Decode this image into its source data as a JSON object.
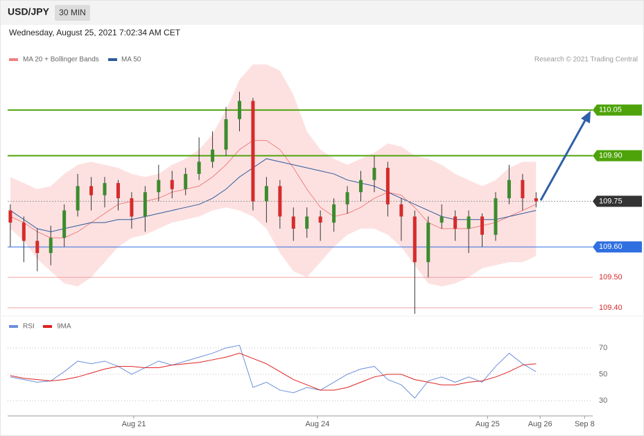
{
  "header": {
    "symbol": "USD/JPY",
    "interval": "30 MIN",
    "date": "Wednesday, August 25, 2021 7:02:34 AM CET",
    "credit": "Research © 2021 Trading Central"
  },
  "chart_data": [
    {
      "type": "candlestick",
      "xlim": [
        -0.2,
        43.2
      ],
      "xticks": [
        {
          "value": 9.16,
          "label": "Aug 21"
        },
        {
          "value": 22.78,
          "label": "Aug 24"
        },
        {
          "value": 35.4,
          "label": "Aug 25"
        },
        {
          "value": 39.3,
          "label": "Aug 26"
        },
        {
          "value": 42.6,
          "label": "Sep 8"
        }
      ],
      "ylim": [
        109.375,
        110.275
      ],
      "up_color": "#3d8b2e",
      "down_color": "#d62b2b",
      "open": [
        109.72,
        109.68,
        109.62,
        109.58,
        109.63,
        109.72,
        109.8,
        109.77,
        109.81,
        109.76,
        109.7,
        109.78,
        109.82,
        109.79,
        109.84,
        109.88,
        109.92,
        110.02,
        110.08,
        109.75,
        109.8,
        109.7,
        109.66,
        109.7,
        109.68,
        109.74,
        109.78,
        109.82,
        109.86,
        109.74,
        109.7,
        109.55,
        109.68,
        109.7,
        109.66,
        109.7,
        109.64,
        109.76,
        109.82,
        109.76
      ],
      "high": [
        109.74,
        109.7,
        109.66,
        109.67,
        109.74,
        109.84,
        109.83,
        109.83,
        109.82,
        109.78,
        109.8,
        109.87,
        109.85,
        109.86,
        109.96,
        109.98,
        110.06,
        110.11,
        110.09,
        109.83,
        109.82,
        109.73,
        109.73,
        109.72,
        109.76,
        109.8,
        109.85,
        109.9,
        109.88,
        109.76,
        109.72,
        109.7,
        109.74,
        109.72,
        109.72,
        109.71,
        109.78,
        109.87,
        109.84,
        109.78
      ],
      "low": [
        109.6,
        109.55,
        109.52,
        109.54,
        109.6,
        109.7,
        109.72,
        109.73,
        109.72,
        109.66,
        109.65,
        109.75,
        109.76,
        109.77,
        109.82,
        109.86,
        109.9,
        109.98,
        109.72,
        109.68,
        109.66,
        109.62,
        109.63,
        109.62,
        109.65,
        109.71,
        109.75,
        109.78,
        109.7,
        109.62,
        109.38,
        109.5,
        109.66,
        109.62,
        109.58,
        109.6,
        109.62,
        109.74,
        109.72,
        109.73
      ],
      "close": [
        109.68,
        109.62,
        109.58,
        109.63,
        109.72,
        109.8,
        109.77,
        109.81,
        109.76,
        109.7,
        109.78,
        109.82,
        109.79,
        109.84,
        109.88,
        109.92,
        110.02,
        110.08,
        109.75,
        109.8,
        109.7,
        109.66,
        109.7,
        109.68,
        109.74,
        109.78,
        109.82,
        109.86,
        109.74,
        109.7,
        109.55,
        109.68,
        109.7,
        109.66,
        109.7,
        109.64,
        109.76,
        109.82,
        109.76,
        109.75
      ],
      "bands": {
        "name": "MA 20 + Bollinger Bands",
        "color": "#f08080",
        "fill": "#fddada",
        "ma": [
          109.7,
          109.68,
          109.65,
          109.63,
          109.63,
          109.65,
          109.68,
          109.71,
          109.74,
          109.75,
          109.75,
          109.76,
          109.78,
          109.79,
          109.8,
          109.83,
          109.87,
          109.92,
          109.95,
          109.95,
          109.92,
          109.86,
          109.79,
          109.73,
          109.7,
          109.71,
          109.73,
          109.76,
          109.78,
          109.77,
          109.73,
          109.68,
          109.66,
          109.66,
          109.66,
          109.67,
          109.68,
          109.7,
          109.72,
          109.74
        ],
        "upper": [
          109.83,
          109.81,
          109.79,
          109.8,
          109.84,
          109.87,
          109.88,
          109.87,
          109.86,
          109.84,
          109.83,
          109.84,
          109.87,
          109.89,
          109.92,
          109.97,
          110.05,
          110.15,
          110.2,
          110.2,
          110.18,
          110.1,
          109.98,
          109.92,
          109.89,
          109.87,
          109.89,
          109.91,
          109.94,
          109.93,
          109.9,
          109.89,
          109.87,
          109.84,
          109.82,
          109.8,
          109.82,
          109.86,
          109.88,
          109.88
        ],
        "lower": [
          109.66,
          109.62,
          109.56,
          109.52,
          109.48,
          109.47,
          109.5,
          109.55,
          109.6,
          109.63,
          109.64,
          109.66,
          109.68,
          109.69,
          109.7,
          109.72,
          109.73,
          109.72,
          109.7,
          109.66,
          109.58,
          109.52,
          109.5,
          109.55,
          109.6,
          109.64,
          109.66,
          109.66,
          109.64,
          109.6,
          109.54,
          109.48,
          109.47,
          109.48,
          109.5,
          109.53,
          109.54,
          109.55,
          109.55,
          109.57
        ]
      },
      "ma50": {
        "name": "MA 50",
        "color": "#2d5a9a",
        "values": [
          109.72,
          109.69,
          109.66,
          109.65,
          109.66,
          109.67,
          109.68,
          109.68,
          109.69,
          109.69,
          109.7,
          109.71,
          109.72,
          109.73,
          109.74,
          109.76,
          109.79,
          109.83,
          109.86,
          109.89,
          109.88,
          109.87,
          109.86,
          109.85,
          109.84,
          109.82,
          109.81,
          109.8,
          109.78,
          109.76,
          109.74,
          109.72,
          109.7,
          109.69,
          109.69,
          109.69,
          109.69,
          109.7,
          109.71,
          109.72
        ]
      },
      "levels": [
        {
          "value": 110.05,
          "label": "110.05",
          "color": "#4ea30a",
          "style": "solid",
          "box": true
        },
        {
          "value": 109.9,
          "label": "109.90",
          "color": "#4ea30a",
          "style": "solid",
          "box": true
        },
        {
          "value": 109.75,
          "label": "109.75",
          "color": "#333333",
          "style": "dotted",
          "box": true
        },
        {
          "value": 109.6,
          "label": "109.60",
          "color": "#2f6fe0",
          "style": "solid",
          "box": true
        },
        {
          "value": 109.5,
          "label": "109.50",
          "color": "#f0a0a0",
          "style": "solid",
          "box": false
        },
        {
          "value": 109.4,
          "label": "109.40",
          "color": "#f0a0a0",
          "style": "solid",
          "box": false
        }
      ]
    },
    {
      "type": "line",
      "ylim": [
        19.5,
        86.8
      ],
      "yticks": [
        70,
        50,
        30
      ],
      "grid": true,
      "series": [
        {
          "name": "RSI",
          "color": "#6b8fdc",
          "values": [
            48,
            46,
            44,
            45,
            52,
            60,
            58,
            60,
            56,
            50,
            55,
            60,
            57,
            60,
            63,
            66,
            70,
            72,
            40,
            44,
            38,
            36,
            40,
            38,
            44,
            50,
            54,
            56,
            46,
            42,
            32,
            45,
            48,
            44,
            48,
            44,
            56,
            66,
            58,
            52
          ]
        },
        {
          "name": "9MA",
          "color": "#e02020",
          "values": [
            49,
            47,
            46,
            45,
            46,
            48,
            51,
            54,
            56,
            56,
            55,
            55,
            57,
            58,
            59,
            61,
            63,
            66,
            62,
            58,
            52,
            46,
            42,
            38,
            38,
            40,
            44,
            48,
            50,
            50,
            46,
            44,
            42,
            42,
            44,
            45,
            48,
            52,
            57,
            58
          ]
        }
      ]
    }
  ]
}
